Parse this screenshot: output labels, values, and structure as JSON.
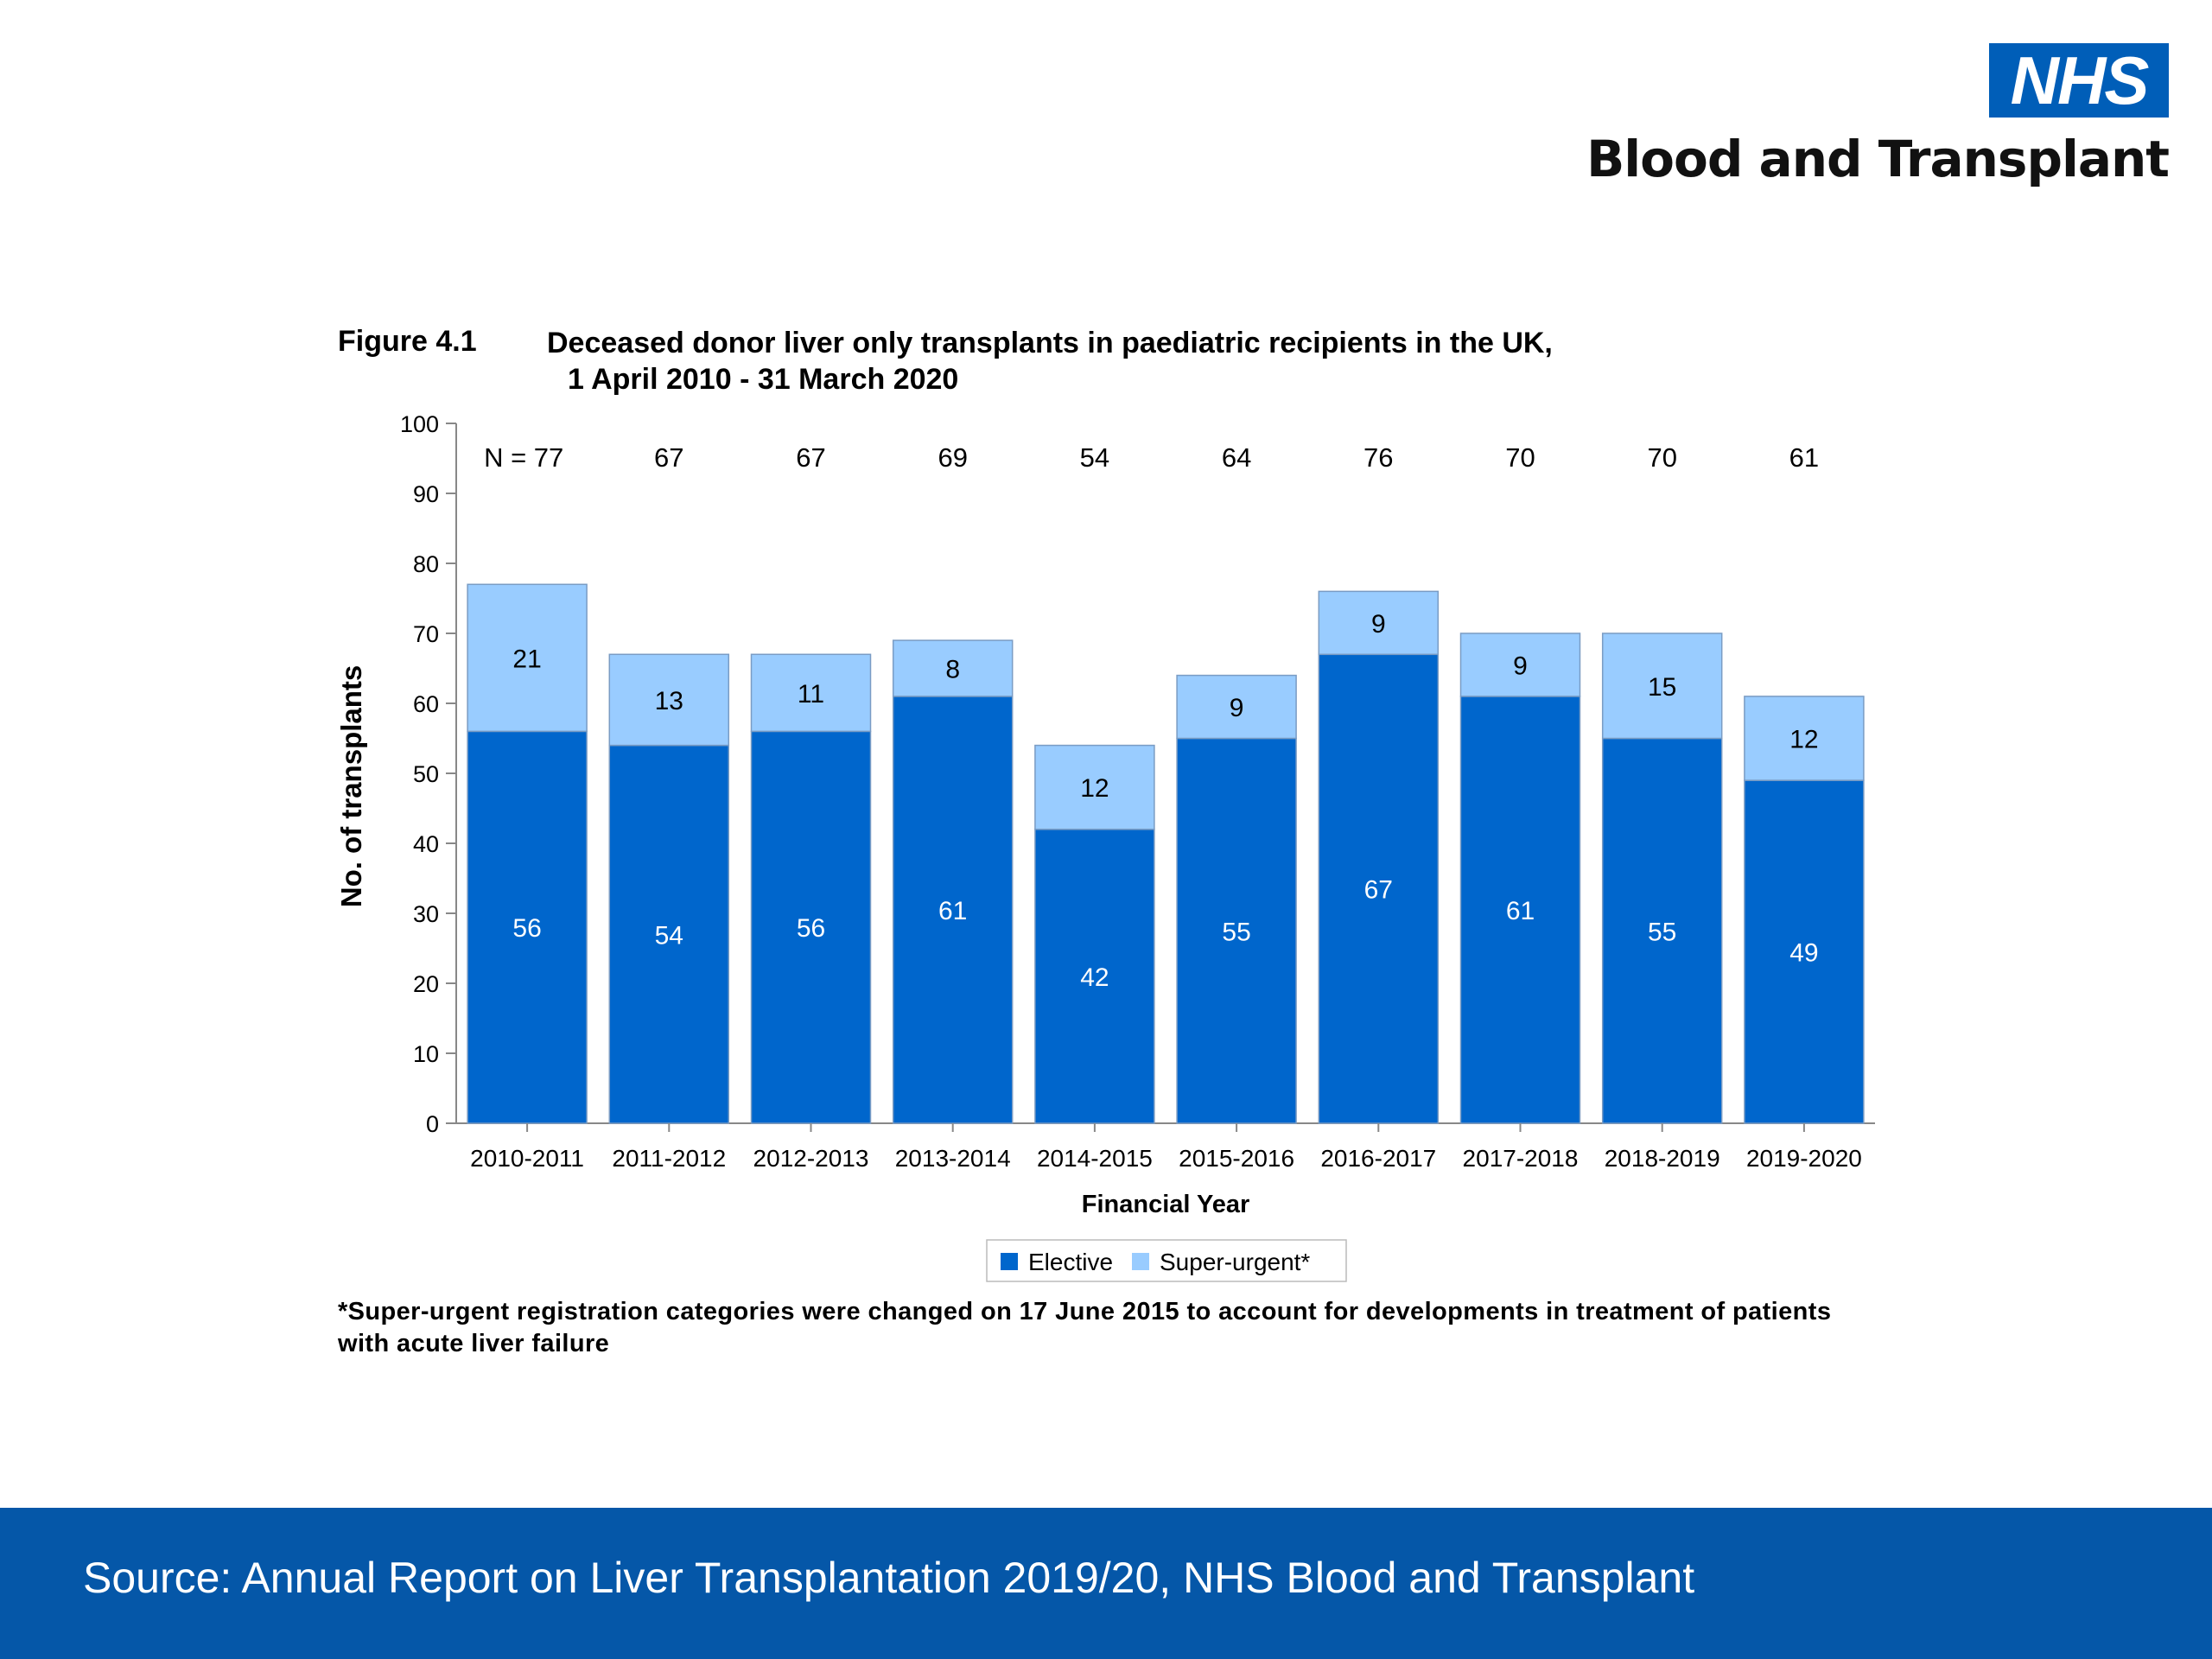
{
  "logo": {
    "mark": "NHS",
    "org": "Blood and Transplant"
  },
  "figure": {
    "label": "Figure 4.1",
    "title_line1": "Deceased donor liver only transplants in paediatric recipients in the UK,",
    "title_line2": "1 April 2010 - 31 March 2020",
    "footnote": "*Super-urgent registration categories were changed on 17 June 2015 to account for developments in treatment of patients with acute liver failure"
  },
  "chart_data": {
    "type": "bar",
    "stacked": true,
    "categories": [
      "2010-2011",
      "2011-2012",
      "2012-2013",
      "2013-2014",
      "2014-2015",
      "2015-2016",
      "2016-2017",
      "2017-2018",
      "2018-2019",
      "2019-2020"
    ],
    "series": [
      {
        "name": "Elective",
        "color": "#0066CC",
        "values": [
          56,
          54,
          56,
          61,
          42,
          55,
          67,
          61,
          55,
          49
        ]
      },
      {
        "name": "Super-urgent*",
        "color": "#99CCFF",
        "values": [
          21,
          13,
          11,
          8,
          12,
          9,
          9,
          9,
          15,
          12
        ]
      }
    ],
    "totals": [
      "N = 77",
      "67",
      "67",
      "69",
      "54",
      "64",
      "76",
      "70",
      "70",
      "61"
    ],
    "xlabel": "Financial Year",
    "ylabel": "No. of transplants",
    "ylim": [
      0,
      100
    ],
    "yticks": [
      "0",
      "10",
      "20",
      "30",
      "40",
      "50",
      "60",
      "70",
      "80",
      "90",
      "100"
    ],
    "legend_position": "bottom"
  },
  "footer": {
    "source": "Source: Annual Report on Liver Transplantation 2019/20, NHS Blood and Transplant"
  }
}
